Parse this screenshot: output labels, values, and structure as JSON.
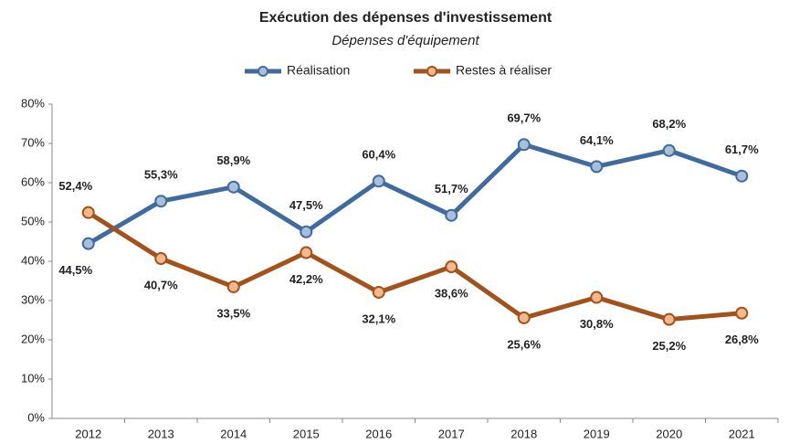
{
  "chart_data": {
    "type": "line",
    "title": "Exécution des dépenses d'investissement",
    "subtitle": "Dépenses d'équipement",
    "categories": [
      "2012",
      "2013",
      "2014",
      "2015",
      "2016",
      "2017",
      "2018",
      "2019",
      "2020",
      "2021"
    ],
    "series": [
      {
        "name": "Réalisation",
        "color": "#3f6b9f",
        "marker_fill": "#a9bfdc",
        "label_color": "#2e4e78",
        "values": [
          44.5,
          55.3,
          58.9,
          47.5,
          60.4,
          51.7,
          69.7,
          64.1,
          68.2,
          61.7
        ],
        "value_labels": [
          "44,5%",
          "55,3%",
          "58,9%",
          "47,5%",
          "60,4%",
          "51,7%",
          "69,7%",
          "64,1%",
          "68,2%",
          "61,7%"
        ]
      },
      {
        "name": "Restes à réaliser",
        "color": "#a3521b",
        "marker_fill": "#f3b98c",
        "label_color": "#b4631f",
        "values": [
          52.4,
          40.7,
          33.5,
          42.2,
          32.1,
          38.6,
          25.6,
          30.8,
          25.2,
          26.8
        ],
        "value_labels": [
          "52,4%",
          "40,7%",
          "33,5%",
          "42,2%",
          "32,1%",
          "38,6%",
          "25,6%",
          "30,8%",
          "25,2%",
          "26,8%"
        ]
      }
    ],
    "ylim": [
      0,
      80
    ],
    "yticks": [
      {
        "value": 0,
        "label": "0%"
      },
      {
        "value": 10,
        "label": "10%"
      },
      {
        "value": 20,
        "label": "20%"
      },
      {
        "value": 30,
        "label": "30%"
      },
      {
        "value": 40,
        "label": "40%"
      },
      {
        "value": 50,
        "label": "50%"
      },
      {
        "value": 60,
        "label": "60%"
      },
      {
        "value": 70,
        "label": "70%"
      },
      {
        "value": 80,
        "label": "80%"
      }
    ],
    "grid": false,
    "legend": "top"
  }
}
